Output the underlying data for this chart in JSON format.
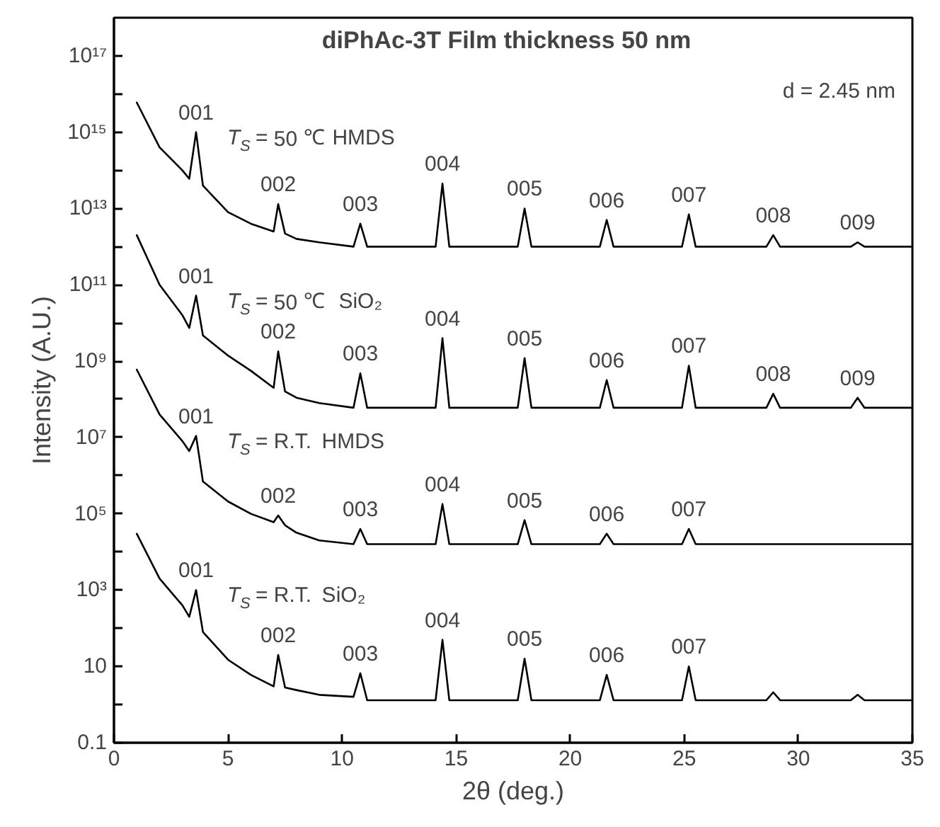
{
  "chart_data": {
    "type": "line",
    "title": "diPhAc-3T  Film thickness  50 nm",
    "xlabel": "2θ (deg.)",
    "ylabel": "Intensity (A.U.)",
    "x": [
      1,
      2,
      3,
      3.3,
      3.6,
      3.9,
      5,
      6,
      7,
      7.2,
      7.5,
      8,
      9,
      10.5,
      10.8,
      11.1,
      12,
      14.1,
      14.4,
      14.7,
      16,
      17.7,
      18.0,
      18.3,
      20,
      21.3,
      21.6,
      21.9,
      23,
      24.9,
      25.2,
      25.5,
      27,
      28.6,
      28.9,
      29.2,
      31,
      32.3,
      32.6,
      32.9,
      35
    ],
    "series": [
      {
        "name": "T$_{S}$ = 50 ℃ HMDS",
        "color": "#000000",
        "values": [
          6000000000000000.0,
          400000000000000.0,
          100000000000000.0,
          60000000000000.0,
          1000000000000000.0,
          40000000000000.0,
          8000000000000.0,
          4000000000000.0,
          2500000000000.0,
          13000000000000.0,
          2200000000000.0,
          1600000000000.0,
          1300000000000.0,
          1000000000000.0,
          4000000000000.0,
          1000000000000.0,
          1000000000000.0,
          1000000000000.0,
          45000000000000.0,
          1000000000000.0,
          1000000000000.0,
          1000000000000.0,
          10000000000000.0,
          1000000000000.0,
          1000000000000.0,
          1000000000000.0,
          5000000000000.0,
          1000000000000.0,
          1000000000000.0,
          1000000000000.0,
          7000000000000.0,
          1000000000000.0,
          1000000000000.0,
          1000000000000.0,
          2000000000000.0,
          1000000000000.0,
          1000000000000.0,
          1000000000000.0,
          1300000000000.0,
          1000000000000.0,
          1000000000000.0
        ]
      },
      {
        "name": "T$_{S}$ = 50 ℃  SiO₂",
        "color": "#000000",
        "values": [
          2000000000000.0,
          100000000000.0,
          16000000000.0,
          7400000000.0,
          52000000000.0,
          4700000000.0,
          1400000000.0,
          560000000.0,
          200000000.0,
          1800000000.0,
          160000000.0,
          110000000.0,
          80000000.0,
          60000000.0,
          480000000.0,
          60000000.0,
          60000000.0,
          60000000.0,
          4000000000.0,
          60000000.0,
          60000000.0,
          60000000.0,
          1200000000.0,
          60000000.0,
          60000000.0,
          60000000.0,
          320000000.0,
          60000000.0,
          60000000.0,
          60000000.0,
          760000000.0,
          60000000.0,
          60000000.0,
          60000000.0,
          140000000.0,
          60000000.0,
          60000000.0,
          60000000.0,
          110000000.0,
          60000000.0,
          60000000.0
        ]
      },
      {
        "name": "T$_{S}$ = R.T. HMDS",
        "color": "#000000",
        "values": [
          600000000.0,
          40000000.0,
          8000000.0,
          4400000.0,
          11000000.0,
          700000.0,
          210000.0,
          100000.0,
          60000.0,
          90000.0,
          50000.0,
          32000.0,
          20000.0,
          16000.0,
          40000.0,
          16000.0,
          16000.0,
          16000.0,
          180000.0,
          16000.0,
          16000.0,
          16000.0,
          68000.0,
          16000.0,
          16000.0,
          16000.0,
          30000.0,
          16000.0,
          16000.0,
          16000.0,
          40000.0,
          16000.0,
          16000.0,
          16000.0,
          16000.0,
          16000.0,
          16000.0,
          16000.0,
          16000.0,
          16000.0,
          16000.0
        ]
      },
      {
        "name": "T$_{S}$ = R.T. SiO₂",
        "color": "#000000",
        "values": [
          30000.0,
          2000.0,
          400,
          200,
          1000,
          80,
          15,
          6,
          3,
          20,
          2.8,
          2.4,
          1.8,
          1.6,
          6.6,
          1.3,
          1.3,
          1.3,
          50,
          1.3,
          1.3,
          1.3,
          16,
          1.3,
          1.3,
          1.3,
          6,
          1.3,
          1.3,
          1.3,
          10,
          1.3,
          1.3,
          1.3,
          2.1,
          1.3,
          1.3,
          1.3,
          1.8,
          1.3,
          1.3
        ]
      }
    ],
    "log": "y",
    "xlim": [
      0,
      35
    ],
    "ylim": [
      0.1,
      1e+18
    ],
    "xticks": [
      0,
      5,
      10,
      15,
      20,
      25,
      30,
      35
    ],
    "yticks": [
      "0.1",
      {
        "value": 1,
        "label": null
      },
      {
        "value": 10,
        "label": "10"
      },
      {
        "value": 100,
        "label": null
      },
      {
        "value": 1000.0,
        "label": "10³"
      },
      {
        "value": 10000.0,
        "label": null
      },
      {
        "value": 100000.0,
        "label": "10⁵"
      },
      {
        "value": 1000000.0,
        "label": null
      },
      {
        "value": 10000000.0,
        "label": "10⁷"
      },
      {
        "value": 100000000.0,
        "label": null
      },
      {
        "value": 1000000000.0,
        "label": "10⁹"
      },
      {
        "value": 10000000000.0,
        "label": null
      },
      {
        "value": 100000000000.0,
        "label": "10¹¹"
      },
      {
        "value": 1000000000000.0,
        "label": null
      },
      {
        "value": 10000000000000.0,
        "label": "10¹³"
      },
      {
        "value": 100000000000000.0,
        "label": null
      },
      {
        "value": 1000000000000000.0,
        "label": "10¹⁵"
      },
      {
        "value": 1e+16,
        "label": null
      },
      {
        "value": 1e+17,
        "label": "10¹⁷"
      }
    ],
    "grid": false,
    "legend": false,
    "marker": "none",
    "line_style": "solid",
    "annotations": [
      "d = 2.45 nm",
      {
        "text": "001",
        "x": 3.6,
        "y": 1000000000000000.0
      },
      {
        "text": "002",
        "x": 7.2,
        "y": 13000000000000.0
      },
      {
        "text": "003",
        "x": 10.8,
        "y": 4000000000000.0
      },
      {
        "text": "004",
        "x": 14.4,
        "y": 45000000000000.0
      },
      {
        "text": "005",
        "x": 18.0,
        "y": 10000000000000.0
      },
      {
        "text": "006",
        "x": 21.6,
        "y": 5000000000000.0
      },
      {
        "text": "007",
        "x": 25.2,
        "y": 7000000000000.0
      },
      {
        "text": "008",
        "x": 28.9,
        "y": 2000000000000.0
      },
      {
        "text": "009",
        "x": 32.6,
        "y": 1300000000000.0
      },
      {
        "text": "001",
        "x": 3.6,
        "y": 52000000000.0
      },
      {
        "text": "002",
        "x": 7.2,
        "y": 1800000000.0
      },
      {
        "text": "003",
        "x": 10.8,
        "y": 480000000.0
      },
      {
        "text": "004",
        "x": 14.4,
        "y": 4000000000.0
      },
      {
        "text": "005",
        "x": 18.0,
        "y": 1200000000.0
      },
      {
        "text": "006",
        "x": 21.6,
        "y": 320000000.0
      },
      {
        "text": "007",
        "x": 25.2,
        "y": 760000000.0
      },
      {
        "text": "008",
        "x": 28.9,
        "y": 140000000.0
      },
      {
        "text": "009",
        "x": 32.6,
        "y": 110000000.0
      },
      {
        "text": "001",
        "x": 3.6,
        "y": 11000000.0
      },
      {
        "text": "002",
        "x": 7.2,
        "y": 90000.0
      },
      {
        "text": "003",
        "x": 10.8,
        "y": 40000.0
      },
      {
        "text": "004",
        "x": 14.4,
        "y": 180000.0
      },
      {
        "text": "005",
        "x": 18.0,
        "y": 68000.0
      },
      {
        "text": "006",
        "x": 21.6,
        "y": 30000.0
      },
      {
        "text": "007",
        "x": 25.2,
        "y": 40000.0
      },
      {
        "text": "001",
        "x": 3.6,
        "y": 1000
      },
      {
        "text": "002",
        "x": 7.2,
        "y": 20
      },
      {
        "text": "003",
        "x": 10.8,
        "y": 6.6
      },
      {
        "text": "004",
        "x": 14.4,
        "y": 50
      },
      {
        "text": "005",
        "x": 18.0,
        "y": 16
      },
      {
        "text": "006",
        "x": 21.6,
        "y": 6
      },
      {
        "text": "007",
        "x": 25.2,
        "y": 10
      }
    ]
  }
}
